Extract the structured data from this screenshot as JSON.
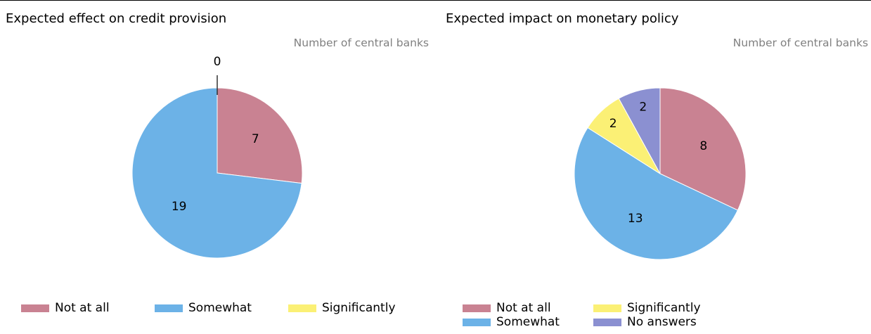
{
  "chart_data": [
    {
      "type": "pie",
      "title": "Expected effect on credit provision",
      "unit_label": "Number of central banks",
      "slices": [
        {
          "label": "Not at all",
          "value": 7,
          "color": "#c98292"
        },
        {
          "label": "Somewhat",
          "value": 19,
          "color": "#6cb2e7"
        },
        {
          "label": "Significantly",
          "value": 0,
          "color": "#fbf075"
        }
      ]
    },
    {
      "type": "pie",
      "title": "Expected impact on monetary policy",
      "unit_label": "Number of central banks",
      "slices": [
        {
          "label": "Not at all",
          "value": 8,
          "color": "#c98292"
        },
        {
          "label": "Somewhat",
          "value": 13,
          "color": "#6cb2e7"
        },
        {
          "label": "Significantly",
          "value": 2,
          "color": "#fbf075"
        },
        {
          "label": "No answers",
          "value": 2,
          "color": "#8b90d1"
        }
      ]
    }
  ]
}
